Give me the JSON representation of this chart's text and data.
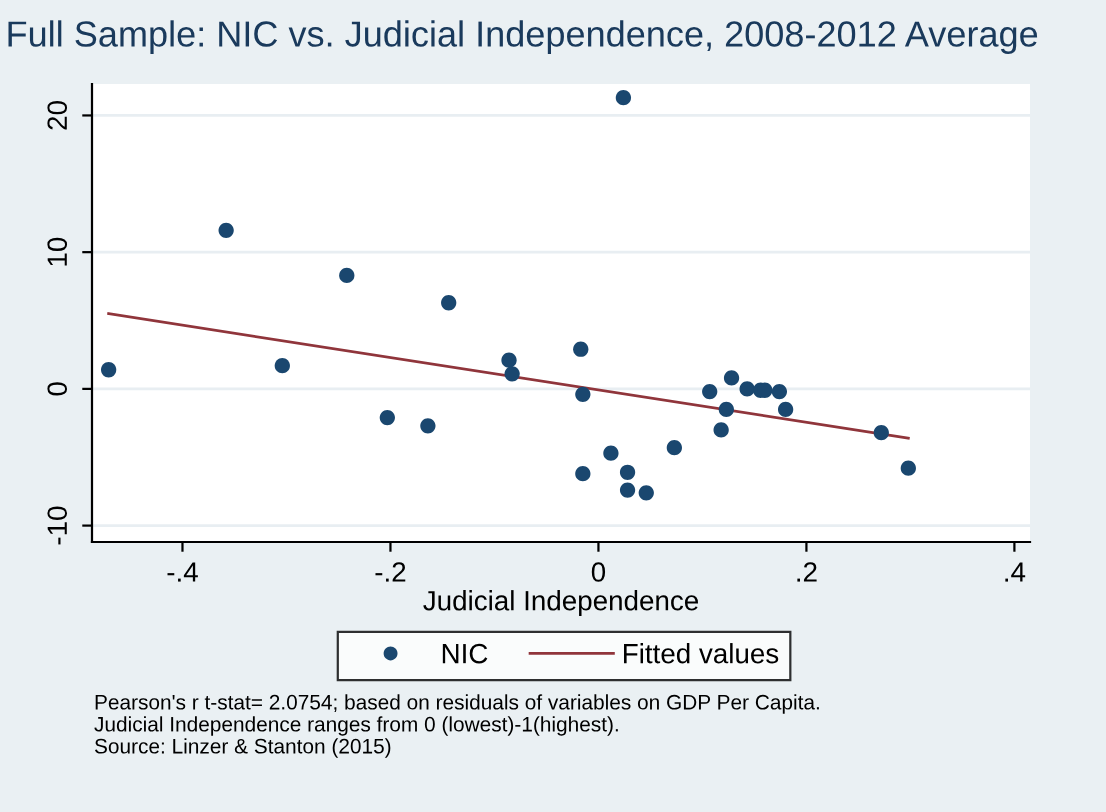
{
  "chart_data": {
    "type": "scatter",
    "title": "Full Sample: NIC vs. Judicial Independence, 2008-2012 Average",
    "xlabel": "Judicial Independence",
    "xlim": [
      -0.487,
      0.415
    ],
    "ylim": [
      -11.2,
      22.3
    ],
    "xticks": [
      {
        "value": -0.4,
        "label": "-.4"
      },
      {
        "value": -0.2,
        "label": "-.2"
      },
      0,
      {
        "value": 0.2,
        "label": ".2"
      },
      {
        "value": 0.4,
        "label": ".4"
      }
    ],
    "yticks": [
      -10,
      0,
      10,
      20
    ],
    "grid": "y",
    "legend": "bottom",
    "series": [
      {
        "name": "NIC",
        "marker": "circle",
        "color": "#1a476f",
        "x": [
          -0.471,
          -0.358,
          -0.304,
          -0.242,
          -0.203,
          -0.164,
          -0.144,
          -0.086,
          -0.083,
          -0.017,
          -0.015,
          -0.015,
          0.024,
          0.012,
          0.028,
          0.028,
          0.046,
          0.073,
          0.107,
          0.118,
          0.123,
          0.128,
          0.143,
          0.156,
          0.16,
          0.174,
          0.18,
          0.272,
          0.298
        ],
        "values": [
          1.4,
          11.6,
          1.7,
          8.3,
          -2.1,
          -2.7,
          6.3,
          2.1,
          1.1,
          2.9,
          -0.4,
          -6.2,
          21.3,
          -4.7,
          -6.1,
          -7.4,
          -7.6,
          -4.3,
          -0.2,
          -3.0,
          -1.5,
          0.8,
          0.0,
          -0.1,
          -0.1,
          -0.2,
          -1.5,
          -3.2,
          -5.8
        ]
      },
      {
        "name": "Fitted values",
        "type": "line",
        "color": "#90353b",
        "x": [
          -0.471,
          0.298
        ],
        "values": [
          5.5,
          -3.6
        ]
      }
    ],
    "annotations": [
      "Pearson's r t-stat= 2.0754; based on residuals of variables on GDP Per Capita.",
      "Judicial Independence ranges from 0 (lowest)-1(highest).",
      "Source: Linzer & Stanton (2015)"
    ]
  }
}
